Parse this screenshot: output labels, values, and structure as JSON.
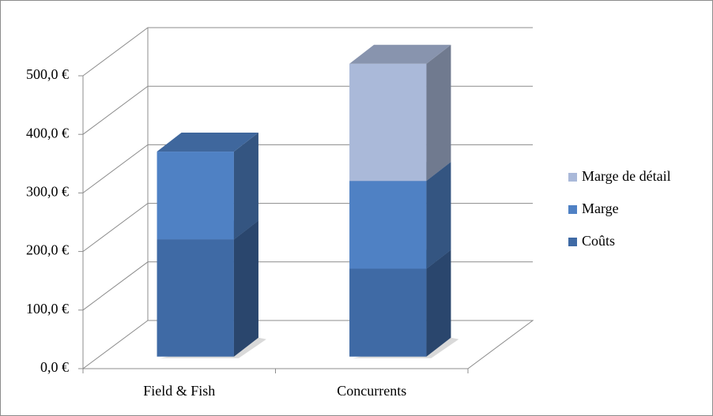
{
  "chart_data": {
    "type": "bar3d-stacked",
    "categories": [
      "Field & Fish",
      "Concurrents"
    ],
    "series": [
      {
        "name": "Coûts",
        "color": "#3f6aa5",
        "values": [
          200,
          150
        ]
      },
      {
        "name": "Marge",
        "color": "#4f81c4",
        "values": [
          150,
          150
        ]
      },
      {
        "name": "Marge de détail",
        "color": "#aab9d9",
        "values": [
          null,
          200
        ]
      }
    ],
    "ylim": [
      0,
      500
    ],
    "yticks": [
      {
        "value": 0,
        "label": "0,0 €"
      },
      {
        "value": 100,
        "label": "100,0 €"
      },
      {
        "value": 200,
        "label": "200,0 €"
      },
      {
        "value": 300,
        "label": "300,0 €"
      },
      {
        "value": 400,
        "label": "400,0 €"
      },
      {
        "value": 500,
        "label": "500,0 €"
      }
    ],
    "grid": true,
    "legend": "right"
  }
}
